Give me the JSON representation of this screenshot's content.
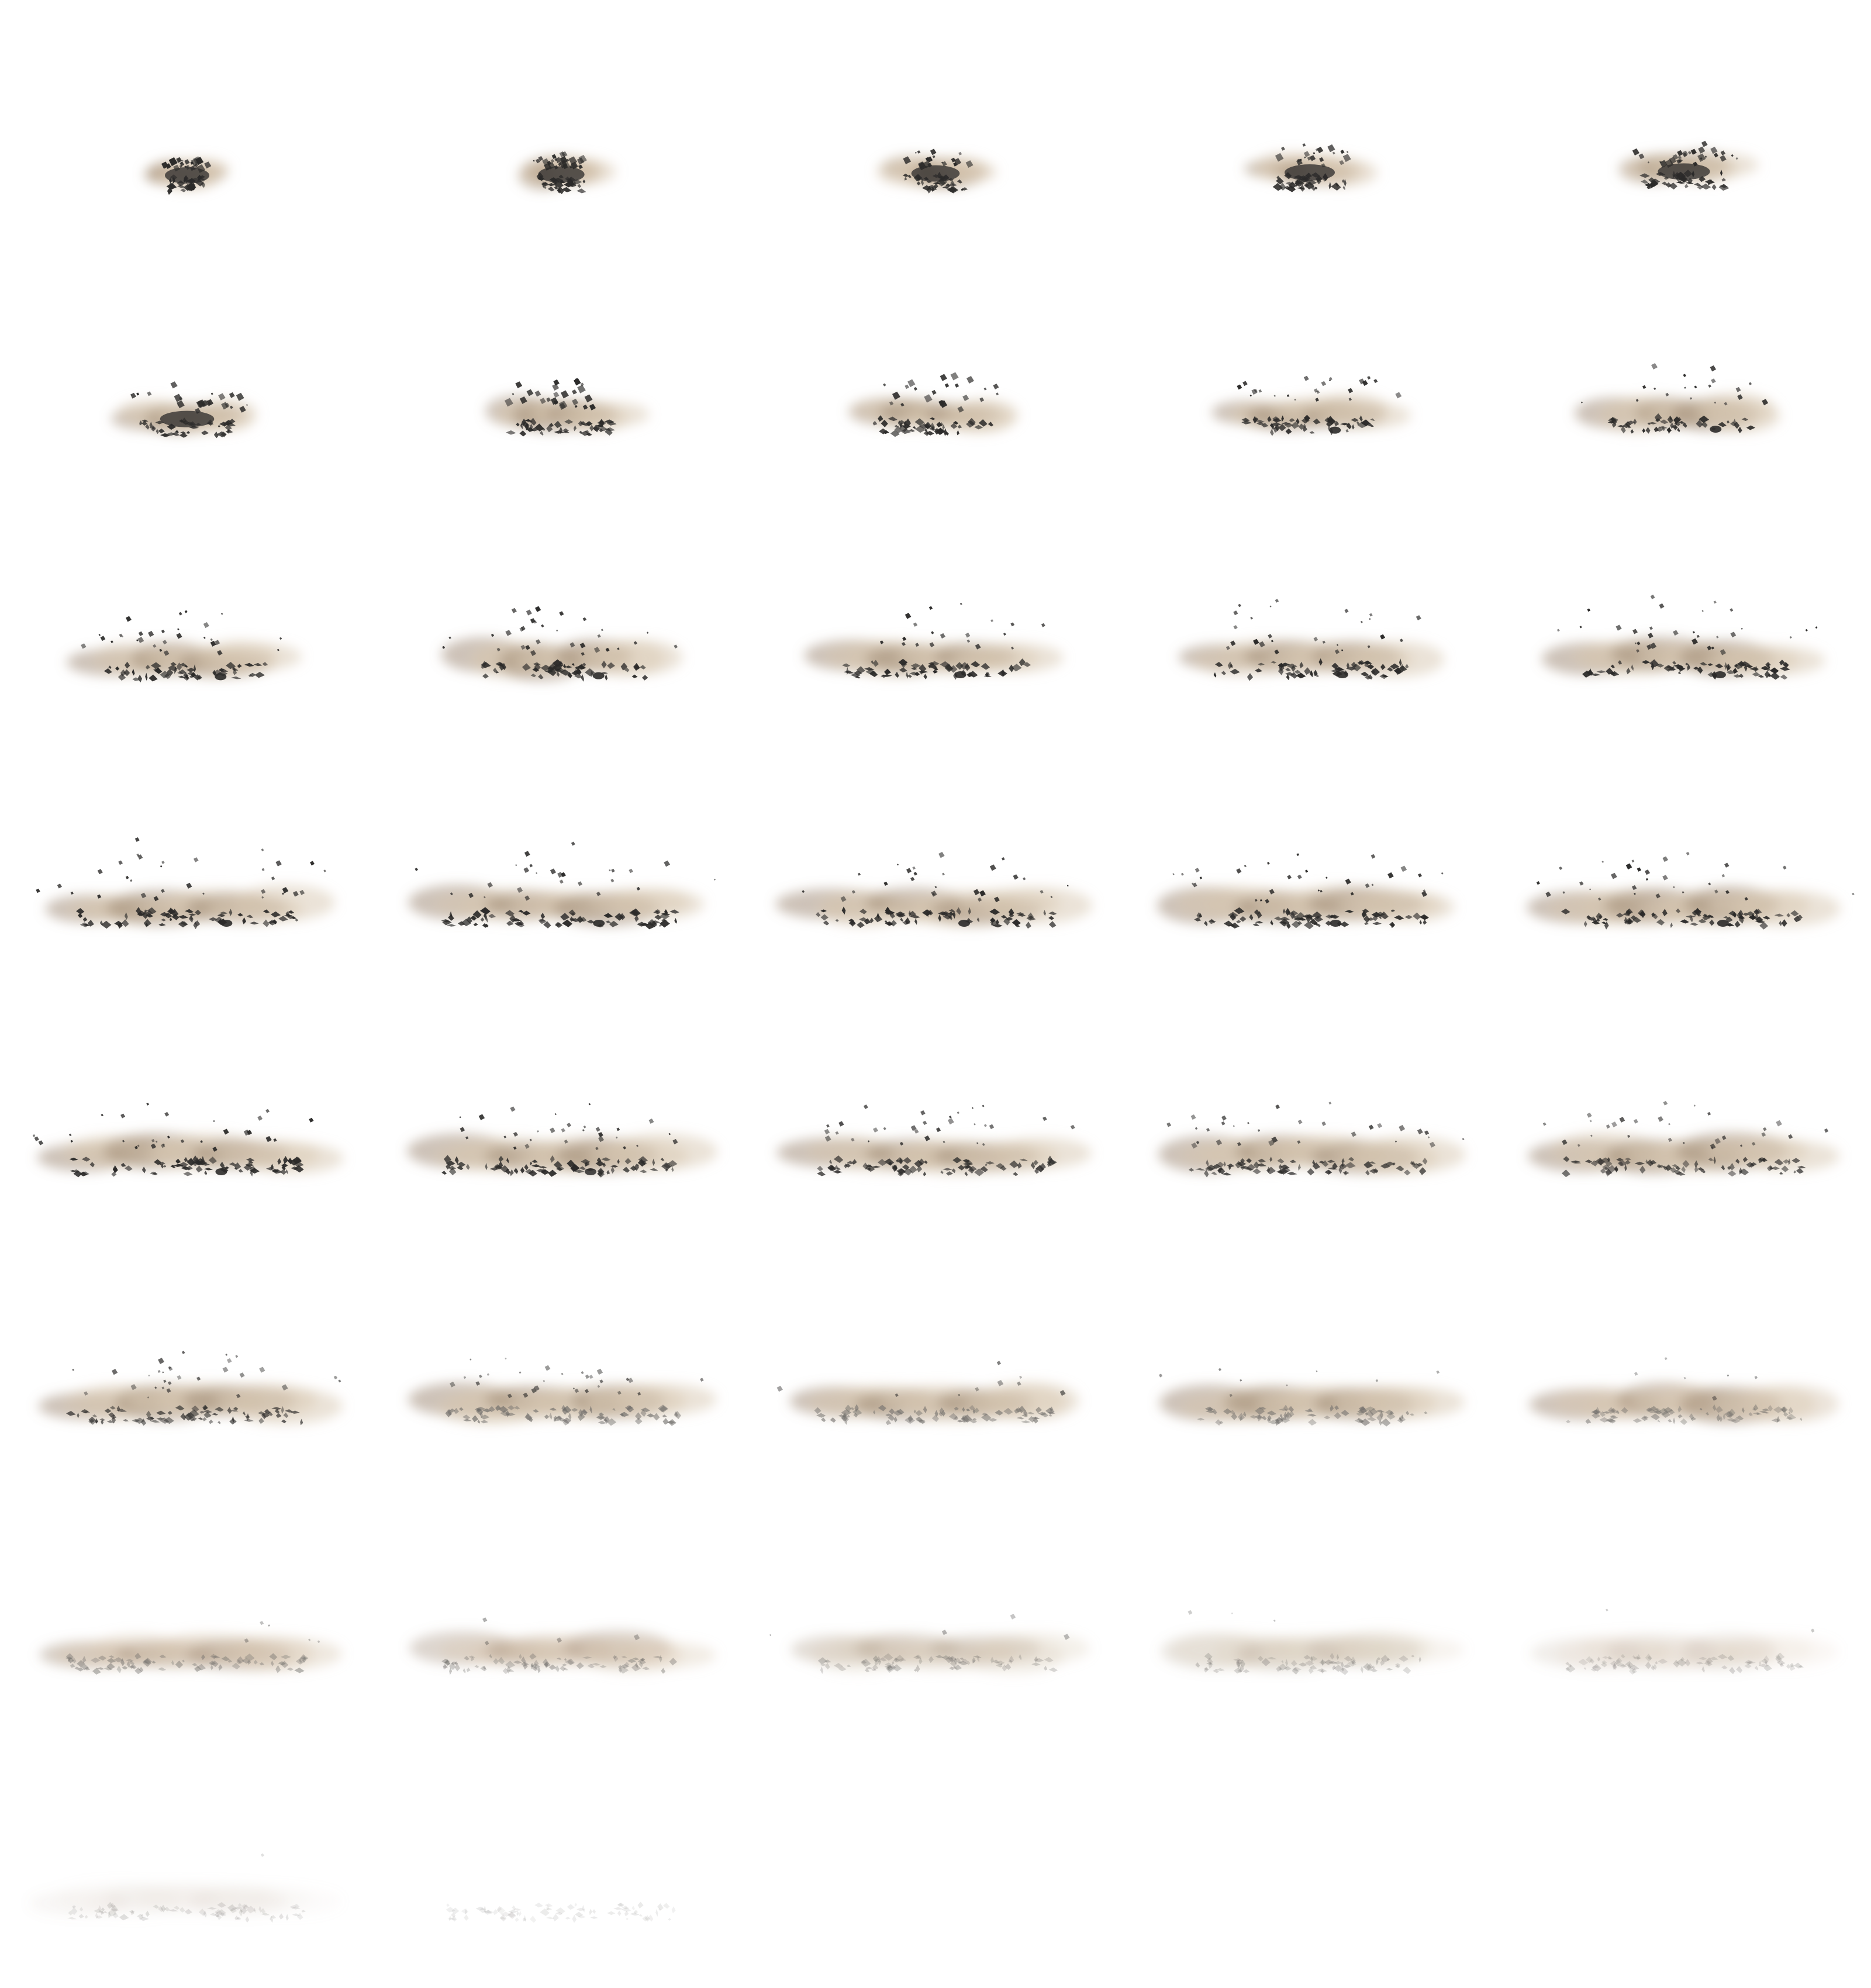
{
  "sprite_sheet": {
    "content": "debris-explosion-sequence",
    "columns": 5,
    "rows": 8,
    "frame_count": 37,
    "background": "#ffffff",
    "colors": {
      "debris": "#2b2a29",
      "debris_light": "#6d6b68",
      "dust": "#d8c8b2",
      "dust_dark": "#9c8670"
    }
  }
}
